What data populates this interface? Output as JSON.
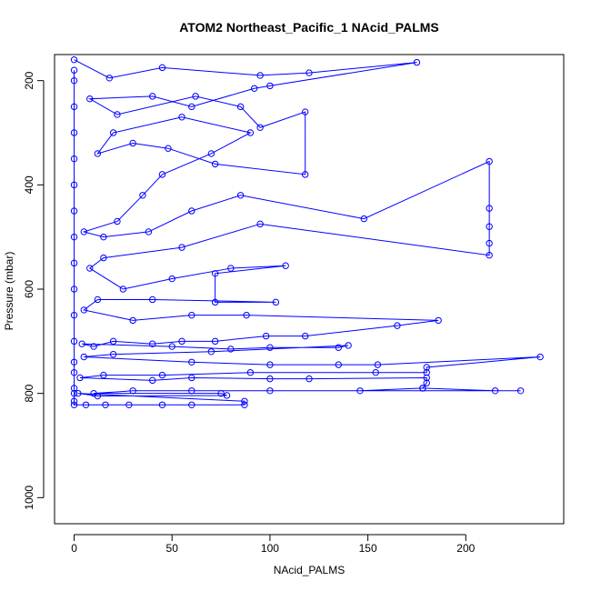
{
  "chart_data": {
    "type": "scatter",
    "title": "ATOM2 Northeast_Pacific_1 NAcid_PALMS",
    "xlabel": "NAcid_PALMS",
    "ylabel": "Pressure (mbar)",
    "xlim": [
      -10,
      250
    ],
    "ylim": [
      1050,
      150
    ],
    "y_reversed": true,
    "x_ticks": [
      0,
      50,
      100,
      150,
      200
    ],
    "y_ticks": [
      200,
      400,
      600,
      800,
      1000
    ],
    "grid": false,
    "legend": "none",
    "series_color": "#0000ff",
    "marker": "open-circle",
    "series": [
      {
        "points": [
          [
            0,
            160
          ],
          [
            18,
            195
          ],
          [
            45,
            175
          ],
          [
            95,
            190
          ],
          [
            120,
            185
          ],
          [
            175,
            165
          ],
          [
            100,
            210
          ],
          [
            92,
            215
          ],
          [
            60,
            250
          ],
          [
            40,
            230
          ],
          [
            8,
            235
          ],
          [
            22,
            265
          ],
          [
            62,
            230
          ],
          [
            85,
            250
          ],
          [
            95,
            290
          ],
          [
            118,
            260
          ],
          [
            118,
            380
          ],
          [
            72,
            360
          ],
          [
            48,
            330
          ],
          [
            30,
            320
          ],
          [
            12,
            340
          ],
          [
            20,
            300
          ],
          [
            55,
            270
          ],
          [
            90,
            300
          ],
          [
            70,
            340
          ],
          [
            45,
            380
          ],
          [
            35,
            420
          ],
          [
            22,
            470
          ],
          [
            5,
            490
          ],
          [
            15,
            500
          ],
          [
            38,
            490
          ],
          [
            60,
            450
          ],
          [
            85,
            420
          ],
          [
            148,
            465
          ],
          [
            212,
            355
          ],
          [
            212,
            445
          ],
          [
            212,
            480
          ],
          [
            212,
            512
          ],
          [
            212,
            535
          ],
          [
            95,
            475
          ],
          [
            55,
            520
          ],
          [
            15,
            540
          ],
          [
            8,
            560
          ],
          [
            25,
            600
          ],
          [
            50,
            580
          ],
          [
            80,
            560
          ],
          [
            108,
            555
          ],
          [
            72,
            570
          ],
          [
            72,
            625
          ],
          [
            103,
            625
          ],
          [
            40,
            620
          ],
          [
            12,
            620
          ],
          [
            5,
            640
          ],
          [
            30,
            660
          ],
          [
            60,
            650
          ],
          [
            88,
            650
          ],
          [
            186,
            660
          ],
          [
            165,
            670
          ],
          [
            118,
            690
          ],
          [
            98,
            690
          ],
          [
            72,
            700
          ],
          [
            55,
            700
          ],
          [
            40,
            705
          ],
          [
            20,
            700
          ],
          [
            10,
            710
          ],
          [
            4,
            705
          ],
          [
            50,
            710
          ],
          [
            80,
            715
          ],
          [
            100,
            712
          ],
          [
            135,
            712
          ],
          [
            140,
            708
          ],
          [
            70,
            720
          ],
          [
            20,
            725
          ],
          [
            5,
            730
          ],
          [
            60,
            740
          ],
          [
            100,
            745
          ],
          [
            135,
            745
          ],
          [
            155,
            745
          ],
          [
            238,
            730
          ],
          [
            180,
            750
          ],
          [
            180,
            760
          ],
          [
            154,
            760
          ],
          [
            90,
            760
          ],
          [
            45,
            765
          ],
          [
            15,
            765
          ],
          [
            3,
            770
          ],
          [
            40,
            775
          ],
          [
            60,
            770
          ],
          [
            100,
            772
          ],
          [
            120,
            772
          ],
          [
            180,
            770
          ],
          [
            180,
            780
          ],
          [
            178,
            790
          ],
          [
            146,
            795
          ],
          [
            178,
            790
          ],
          [
            215,
            795
          ],
          [
            228,
            795
          ],
          [
            100,
            795
          ],
          [
            60,
            795
          ],
          [
            30,
            795
          ],
          [
            10,
            800
          ],
          [
            75,
            800
          ],
          [
            78,
            804
          ],
          [
            12,
            805
          ],
          [
            2,
            800
          ],
          [
            87,
            815
          ],
          [
            87,
            822
          ],
          [
            60,
            822
          ],
          [
            45,
            822
          ],
          [
            28,
            822
          ],
          [
            16,
            822
          ],
          [
            6,
            822
          ],
          [
            0,
            822
          ],
          [
            0,
            815
          ],
          [
            0,
            800
          ],
          [
            0,
            790
          ],
          [
            0,
            760
          ],
          [
            0,
            740
          ],
          [
            0,
            700
          ],
          [
            0,
            650
          ],
          [
            0,
            600
          ],
          [
            0,
            550
          ],
          [
            0,
            500
          ],
          [
            0,
            450
          ],
          [
            0,
            400
          ],
          [
            0,
            350
          ],
          [
            0,
            300
          ],
          [
            0,
            250
          ],
          [
            0,
            200
          ],
          [
            0,
            180
          ]
        ]
      }
    ]
  }
}
